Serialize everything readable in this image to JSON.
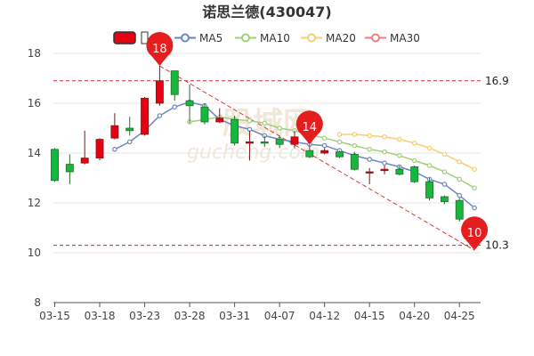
{
  "chart_data": {
    "type": "candlestick",
    "title": "诺思兰德(430047)",
    "ylim": [
      8,
      18
    ],
    "yticks": [
      8,
      10,
      12,
      14,
      16,
      18
    ],
    "xtick_labels": [
      "03-15",
      "03-18",
      "03-23",
      "03-28",
      "03-31",
      "04-07",
      "04-12",
      "04-15",
      "04-20",
      "04-25"
    ],
    "xtick_indices": [
      0,
      3,
      6,
      9,
      12,
      15,
      18,
      21,
      24,
      27
    ],
    "legend": [
      {
        "name": "",
        "color": "#e60012"
      },
      {
        "name": "MA5",
        "color": "#6c86c2"
      },
      {
        "name": "MA10",
        "color": "#9fd07a"
      },
      {
        "name": "MA20",
        "color": "#f4cf6e"
      },
      {
        "name": "MA30",
        "color": "#f07c7c"
      }
    ],
    "candles": [
      {
        "o": 14.15,
        "c": 12.9,
        "h": 14.2,
        "l": 12.85
      },
      {
        "o": 13.55,
        "c": 13.25,
        "h": 13.95,
        "l": 12.75
      },
      {
        "o": 13.6,
        "c": 13.8,
        "h": 14.9,
        "l": 13.55
      },
      {
        "o": 13.8,
        "c": 14.55,
        "h": 14.6,
        "l": 13.7
      },
      {
        "o": 14.6,
        "c": 15.1,
        "h": 15.6,
        "l": 14.55
      },
      {
        "o": 15.0,
        "c": 14.9,
        "h": 15.45,
        "l": 14.7
      },
      {
        "o": 14.75,
        "c": 16.2,
        "h": 16.25,
        "l": 14.7
      },
      {
        "o": 16.0,
        "c": 16.9,
        "h": 17.5,
        "l": 15.9
      },
      {
        "o": 17.3,
        "c": 16.35,
        "h": 17.3,
        "l": 16.1
      },
      {
        "o": 16.1,
        "c": 15.9,
        "h": 16.75,
        "l": 15.2
      },
      {
        "o": 15.85,
        "c": 15.25,
        "h": 16.0,
        "l": 15.15
      },
      {
        "o": 15.25,
        "c": 15.4,
        "h": 15.8,
        "l": 15.2
      },
      {
        "o": 15.35,
        "c": 14.4,
        "h": 15.5,
        "l": 14.3
      },
      {
        "o": 14.4,
        "c": 14.45,
        "h": 14.9,
        "l": 13.7
      },
      {
        "o": 14.45,
        "c": 14.4,
        "h": 14.7,
        "l": 14.25
      },
      {
        "o": 14.55,
        "c": 14.35,
        "h": 14.7,
        "l": 14.2
      },
      {
        "o": 14.35,
        "c": 14.65,
        "h": 14.9,
        "l": 14.2
      },
      {
        "o": 14.1,
        "c": 13.85,
        "h": 14.35,
        "l": 13.8
      },
      {
        "o": 14.0,
        "c": 14.1,
        "h": 14.2,
        "l": 13.95
      },
      {
        "o": 14.05,
        "c": 13.85,
        "h": 14.1,
        "l": 13.8
      },
      {
        "o": 13.95,
        "c": 13.35,
        "h": 14.05,
        "l": 13.3
      },
      {
        "o": 13.2,
        "c": 13.25,
        "h": 13.4,
        "l": 12.75
      },
      {
        "o": 13.3,
        "c": 13.35,
        "h": 13.5,
        "l": 13.15
      },
      {
        "o": 13.35,
        "c": 13.15,
        "h": 13.5,
        "l": 13.1
      },
      {
        "o": 13.45,
        "c": 12.85,
        "h": 13.5,
        "l": 12.8
      },
      {
        "o": 12.85,
        "c": 12.2,
        "h": 13.0,
        "l": 12.1
      },
      {
        "o": 12.25,
        "c": 12.05,
        "h": 12.3,
        "l": 11.95
      },
      {
        "o": 12.1,
        "c": 11.35,
        "h": 12.2,
        "l": 11.25
      },
      {
        "o": 11.4,
        "c": 10.35,
        "h": 11.45,
        "l": 10.3
      }
    ],
    "ma5": [
      null,
      null,
      null,
      null,
      14.15,
      14.45,
      14.9,
      15.5,
      15.85,
      16.05,
      15.9,
      15.35,
      15.1,
      14.95,
      14.7,
      14.55,
      14.45,
      14.35,
      14.3,
      14.1,
      13.9,
      13.75,
      13.6,
      13.45,
      13.25,
      12.95,
      12.75,
      12.3,
      11.8
    ],
    "ma10": [
      null,
      null,
      null,
      null,
      null,
      null,
      null,
      null,
      null,
      15.25,
      15.35,
      15.45,
      15.35,
      15.3,
      15.2,
      15.0,
      14.9,
      14.75,
      14.6,
      14.45,
      14.3,
      14.15,
      14.05,
      13.9,
      13.7,
      13.5,
      13.25,
      12.95,
      12.6
    ],
    "ma20": [
      null,
      null,
      null,
      null,
      null,
      null,
      null,
      null,
      null,
      null,
      null,
      null,
      null,
      null,
      null,
      null,
      null,
      null,
      null,
      14.75,
      14.75,
      14.7,
      14.65,
      14.55,
      14.4,
      14.2,
      13.95,
      13.65,
      13.35
    ],
    "reference_lines": [
      {
        "value": 16.9,
        "label": "16.9"
      },
      {
        "value": 10.3,
        "label": "10.3"
      }
    ],
    "markers": [
      {
        "index": 7,
        "value": 17.5,
        "label": "18"
      },
      {
        "index": 17,
        "value": 14.35,
        "label": "14"
      },
      {
        "index": 28,
        "value": 10.1,
        "label": "10"
      }
    ],
    "watermark": {
      "main": "股城网",
      "sub": "gucheng.com"
    }
  }
}
